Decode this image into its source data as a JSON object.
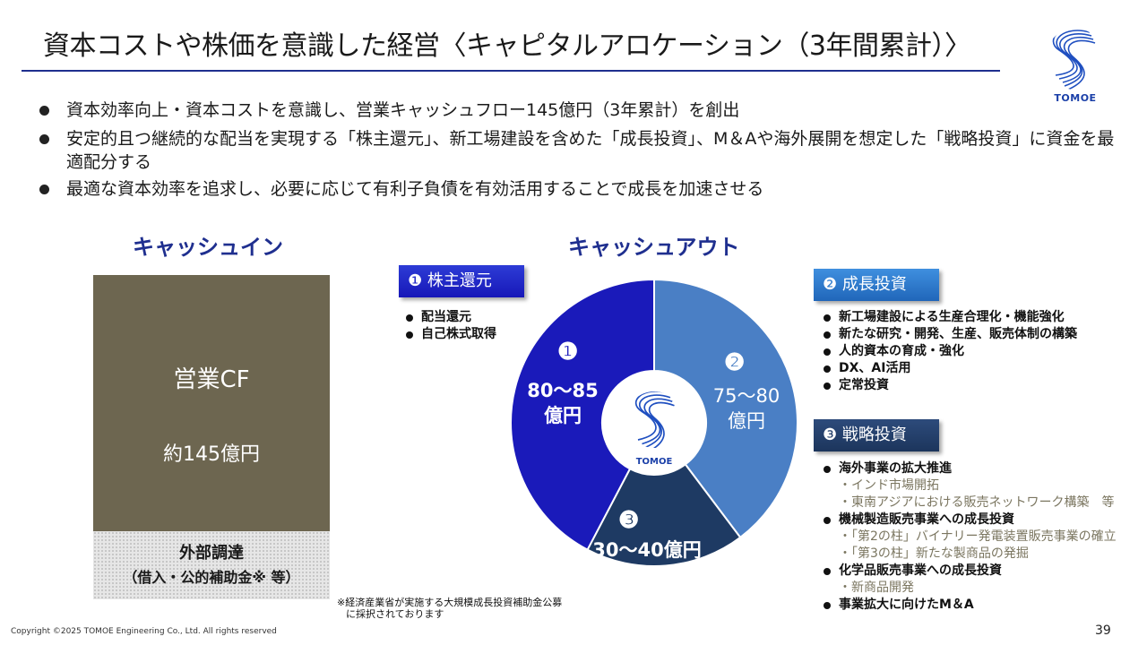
{
  "header": {
    "title": "資本コストや株価を意識した経営〈キャピタルアロケーション（3年間累計）〉",
    "logo_text": "TOMOE"
  },
  "bullets": [
    "資本効率向上・資本コストを意識し、営業キャッシュフロー145億円（3年累計）を創出",
    "安定的且つ継続的な配当を実現する「株主還元」、新工場建設を含めた「成長投資」、M＆Aや海外展開を想定した「戦略投資」に資金を最適配分する",
    "最適な資本効率を追求し、必要に応じて有利子負債を有効活用することで成長を加速させる"
  ],
  "cash_in": {
    "heading": "キャッシュイン",
    "cf_label": "営業CF",
    "cf_value": "約145億円",
    "external_line1": "外部調達",
    "external_line2": "（借入・公的補助金※ 等）"
  },
  "cash_out": {
    "heading": "キャッシュアウト",
    "tags": [
      "❶ 株主還元",
      "❷ 成長投資",
      "❸ 戦略投資"
    ],
    "shareholder_items": [
      "配当還元",
      "自己株式取得"
    ],
    "growth_items": [
      "新工場建設による生産合理化・機能強化",
      "新たな研究・開発、生産、販売体制の構築",
      "人的資本の育成・強化",
      "DX、AI活用",
      "定常投資"
    ],
    "strategic_items": {
      "i1": "海外事業の拡大推進",
      "s1": "・インド市場開拓",
      "s2": "・東南アジアにおける販売ネットワーク構築　等",
      "i2": "機械製造販売事業への成長投資",
      "s3": "・「第2の柱」バイナリー発電装置販売事業の確立",
      "s4": "・「第3の柱」新たな製商品の発掘",
      "i3": "化学品販売事業への成長投資",
      "s5": "・新商品開発",
      "i4": "事業拡大に向けたM＆A"
    },
    "pie_labels": {
      "n1": "❶",
      "v1a": "80～85",
      "v1b": "億円",
      "n2": "❷",
      "v2a": "75～80",
      "v2b": "億円",
      "n3": "❸",
      "v3": "30～40億円"
    },
    "center_logo_text": "TOMOE"
  },
  "chart_data": {
    "type": "pie",
    "categories": [
      "株主還元",
      "成長投資",
      "戦略投資"
    ],
    "values": [
      82.5,
      77.5,
      35
    ],
    "value_labels": [
      "80～85億円",
      "75～80億円",
      "30～40億円"
    ],
    "colors": [
      "#1a1aba",
      "#4a7fc5",
      "#1e3a63"
    ]
  },
  "footnote_line1": "※経済産業省が実施する大規模成長投資補助金公募",
  "footnote_line2": "に採択されております",
  "copyright": "Copyright ©2025 TOMOE Engineering Co., Ltd. All rights reserved",
  "page_number": "39"
}
